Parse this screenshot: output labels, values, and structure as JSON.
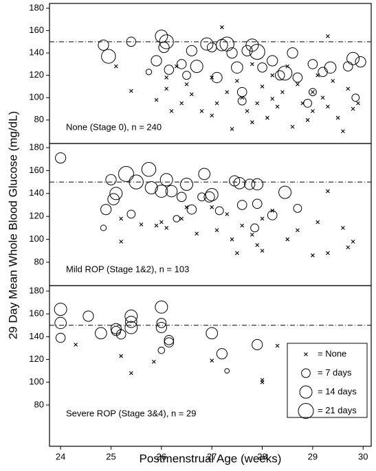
{
  "chart_data": [
    {
      "type": "scatter",
      "ylabel": "29 Day Mean Whole Blood Glucose (mg/dL)",
      "label": "None (Stage 0), n = 240",
      "xlim": [
        23.78,
        30.16
      ],
      "ylim": [
        59,
        184.3
      ],
      "yticks": [
        80,
        100,
        120,
        140,
        160,
        180
      ],
      "hline": 150,
      "series": [
        {
          "marker": "x",
          "x": [
            25.1,
            25.4,
            25.9,
            26.1,
            26.1,
            26.3,
            26.4,
            26.5,
            26.6,
            26.8,
            27.0,
            27.1,
            27.2,
            27.3,
            27.4,
            27.5,
            27.6,
            27.7,
            27.8,
            27.9,
            28.0,
            28.1,
            28.2,
            28.3,
            28.4,
            28.5,
            28.6,
            28.7,
            28.8,
            28.9,
            29.0,
            29.0,
            29.1,
            29.2,
            29.3,
            29.3,
            29.4,
            29.5,
            29.6,
            29.7,
            29.8,
            29.9,
            26.2,
            27.0,
            27.8,
            28.2
          ],
          "y": [
            128,
            106,
            98,
            118,
            108,
            128,
            95,
            112,
            103,
            88,
            118,
            95,
            163,
            105,
            72,
            115,
            100,
            88,
            130,
            95,
            110,
            82,
            120,
            92,
            105,
            128,
            74,
            112,
            95,
            80,
            105,
            88,
            120,
            100,
            155,
            92,
            115,
            82,
            70,
            108,
            90,
            95,
            88,
            84,
            78,
            99
          ]
        },
        {
          "marker": "circle",
          "x": [
            24.85,
            24.95,
            25.4,
            25.75,
            25.9,
            26.0,
            26.05,
            26.1,
            26.15,
            26.4,
            26.5,
            26.6,
            26.7,
            26.9,
            27.0,
            27.1,
            27.2,
            27.3,
            27.4,
            27.5,
            27.6,
            27.7,
            27.8,
            27.9,
            28.0,
            28.2,
            28.35,
            28.45,
            28.6,
            28.7,
            28.9,
            29.0,
            29.2,
            29.35,
            29.7,
            29.8,
            29.95,
            29.85,
            27.6,
            29.0
          ],
          "y": [
            147,
            137,
            150,
            123,
            133,
            155,
            145,
            150,
            125,
            130,
            120,
            142,
            128,
            148,
            145,
            118,
            147,
            148,
            140,
            127,
            105,
            142,
            147,
            141,
            127,
            133,
            120,
            122,
            140,
            118,
            95,
            130,
            123,
            127,
            128,
            135,
            132,
            100,
            97,
            105
          ],
          "size": [
            10,
            18,
            8,
            3,
            10,
            14,
            10,
            18,
            8,
            8,
            6,
            10,
            14,
            14,
            8,
            10,
            12,
            18,
            10,
            12,
            8,
            10,
            14,
            21,
            8,
            10,
            8,
            18,
            10,
            8,
            6,
            8,
            8,
            12,
            8,
            14,
            10,
            5,
            6,
            5
          ]
        }
      ]
    },
    {
      "type": "scatter",
      "label": "Mild ROP (Stage 1&2), n = 103",
      "xlim": [
        23.78,
        30.16
      ],
      "ylim": [
        59.6,
        183.6
      ],
      "yticks": [
        80,
        100,
        120,
        140,
        160,
        180
      ],
      "hline": 150,
      "series": [
        {
          "marker": "x",
          "x": [
            25.2,
            25.2,
            25.6,
            25.9,
            26.0,
            26.1,
            26.5,
            26.4,
            26.7,
            27.0,
            27.1,
            27.3,
            27.4,
            27.5,
            27.6,
            27.8,
            27.9,
            28.0,
            28.2,
            28.5,
            28.7,
            29.0,
            29.1,
            29.3,
            29.3,
            29.6,
            29.7,
            29.8,
            28.0
          ],
          "y": [
            98,
            118,
            113,
            112,
            115,
            110,
            128,
            118,
            105,
            128,
            108,
            122,
            100,
            88,
            112,
            104,
            95,
            118,
            125,
            100,
            108,
            86,
            115,
            88,
            142,
            110,
            93,
            98,
            90
          ]
        },
        {
          "marker": "circle",
          "x": [
            24.0,
            24.85,
            24.9,
            25.0,
            25.05,
            25.1,
            25.3,
            25.4,
            25.5,
            25.75,
            25.8,
            26.0,
            26.1,
            26.2,
            26.4,
            26.5,
            26.6,
            26.8,
            26.85,
            26.95,
            27.0,
            27.15,
            27.45,
            27.55,
            27.6,
            27.75,
            27.9,
            27.9,
            28.2,
            28.45,
            28.7,
            27.85,
            26.3
          ],
          "y": [
            171,
            110,
            126,
            152,
            135,
            140,
            157,
            122,
            150,
            161,
            145,
            142,
            152,
            142,
            137,
            148,
            126,
            137,
            157,
            137,
            139,
            125,
            151,
            149,
            130,
            148,
            148,
            131,
            121,
            141,
            127,
            110,
            118
          ],
          "size": [
            10,
            3,
            10,
            10,
            12,
            14,
            21,
            6,
            18,
            18,
            14,
            14,
            14,
            12,
            8,
            14,
            8,
            6,
            12,
            10,
            14,
            6,
            10,
            12,
            8,
            10,
            12,
            8,
            8,
            14,
            6,
            6,
            4
          ]
        }
      ]
    },
    {
      "type": "scatter",
      "label": "Severe ROP (Stage 3&4), n = 29",
      "xlabel": "Postmenstrual Age (weeks)",
      "xlim": [
        23.78,
        30.16
      ],
      "ylim": [
        43.8,
        184.8
      ],
      "yticks": [
        80,
        100,
        120,
        140,
        160,
        180
      ],
      "xticks": [
        24,
        25,
        26,
        27,
        28,
        29,
        30
      ],
      "hline": 150,
      "legend": [
        {
          "label": "= None",
          "marker": "x"
        },
        {
          "label": "= 7 days",
          "size": 7
        },
        {
          "label": "= 14 days",
          "size": 14
        },
        {
          "label": "= 21 days",
          "size": 21
        }
      ],
      "series": [
        {
          "marker": "x",
          "x": [
            24.3,
            25.2,
            25.4,
            25.85,
            27.0,
            28.0,
            28.0,
            28.3
          ],
          "y": [
            133,
            123,
            108,
            118,
            119,
            102,
            100,
            132
          ]
        },
        {
          "marker": "circle",
          "x": [
            24.0,
            24.0,
            24.0,
            24.55,
            24.8,
            25.1,
            25.1,
            25.2,
            25.4,
            25.4,
            25.4,
            26.0,
            26.0,
            26.0,
            26.0,
            26.15,
            26.15,
            27.0,
            27.2,
            27.3,
            27.9
          ],
          "y": [
            164,
            152,
            139,
            158,
            143,
            147,
            145,
            142,
            158,
            153,
            148,
            166,
            152,
            148,
            128,
            137,
            135,
            143,
            125,
            110,
            133
          ],
          "size": [
            14,
            12,
            8,
            10,
            12,
            10,
            8,
            8,
            14,
            12,
            14,
            14,
            8,
            10,
            4,
            8,
            8,
            12,
            10,
            2,
            10
          ]
        }
      ]
    }
  ]
}
